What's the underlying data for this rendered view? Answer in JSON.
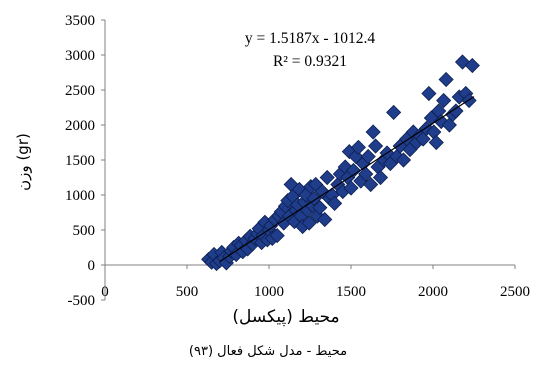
{
  "chart_data": {
    "type": "scatter",
    "title": "",
    "xlabel": "محیط (پیکسل)",
    "ylabel": "وزن (gr)",
    "xlim": [
      0,
      2500
    ],
    "ylim": [
      -500,
      3500
    ],
    "x_ticks": [
      "0",
      "500",
      "1000",
      "1500",
      "2000",
      "2500"
    ],
    "y_ticks": [
      "3500",
      "3000",
      "2500",
      "2000",
      "1500",
      "1000",
      "500",
      "0",
      "-500"
    ],
    "grid": false,
    "marker": "diamond",
    "marker_color": "#1f3d8a",
    "trendline": {
      "type": "linear",
      "slope": 1.5187,
      "intercept": -1012.4,
      "x_range": [
        700,
        2250
      ],
      "equation_label": "y = 1.5187x - 1012.4",
      "r2_label": "R² = 0.9321"
    },
    "points": [
      [
        632,
        80
      ],
      [
        650,
        40
      ],
      [
        665,
        150
      ],
      [
        680,
        20
      ],
      [
        700,
        60
      ],
      [
        712,
        180
      ],
      [
        725,
        100
      ],
      [
        740,
        30
      ],
      [
        760,
        120
      ],
      [
        770,
        200
      ],
      [
        785,
        250
      ],
      [
        800,
        150
      ],
      [
        815,
        310
      ],
      [
        830,
        280
      ],
      [
        840,
        190
      ],
      [
        860,
        350
      ],
      [
        870,
        230
      ],
      [
        885,
        410
      ],
      [
        900,
        300
      ],
      [
        915,
        380
      ],
      [
        930,
        450
      ],
      [
        940,
        520
      ],
      [
        955,
        320
      ],
      [
        965,
        420
      ],
      [
        975,
        610
      ],
      [
        990,
        360
      ],
      [
        1000,
        500
      ],
      [
        1010,
        560
      ],
      [
        1020,
        380
      ],
      [
        1035,
        650
      ],
      [
        1050,
        420
      ],
      [
        1060,
        700
      ],
      [
        1075,
        760
      ],
      [
        1090,
        600
      ],
      [
        1100,
        840
      ],
      [
        1115,
        920
      ],
      [
        1125,
        700
      ],
      [
        1135,
        1150
      ],
      [
        1145,
        980
      ],
      [
        1155,
        620
      ],
      [
        1165,
        780
      ],
      [
        1175,
        860
      ],
      [
        1185,
        1080
      ],
      [
        1195,
        700
      ],
      [
        1205,
        550
      ],
      [
        1215,
        900
      ],
      [
        1225,
        1000
      ],
      [
        1235,
        780
      ],
      [
        1245,
        600
      ],
      [
        1255,
        1120
      ],
      [
        1265,
        850
      ],
      [
        1275,
        950
      ],
      [
        1285,
        1150
      ],
      [
        1295,
        700
      ],
      [
        1310,
        820
      ],
      [
        1325,
        1050
      ],
      [
        1340,
        650
      ],
      [
        1355,
        1250
      ],
      [
        1370,
        950
      ],
      [
        1385,
        1000
      ],
      [
        1400,
        880
      ],
      [
        1420,
        1150
      ],
      [
        1435,
        1300
      ],
      [
        1450,
        1050
      ],
      [
        1465,
        1400
      ],
      [
        1480,
        1250
      ],
      [
        1490,
        1620
      ],
      [
        1500,
        1100
      ],
      [
        1515,
        1350
      ],
      [
        1530,
        1550
      ],
      [
        1545,
        1680
      ],
      [
        1560,
        1200
      ],
      [
        1575,
        1450
      ],
      [
        1590,
        1300
      ],
      [
        1605,
        1550
      ],
      [
        1620,
        1150
      ],
      [
        1635,
        1900
      ],
      [
        1650,
        1700
      ],
      [
        1665,
        1400
      ],
      [
        1680,
        1250
      ],
      [
        1700,
        1500
      ],
      [
        1720,
        1600
      ],
      [
        1740,
        1450
      ],
      [
        1760,
        2180
      ],
      [
        1780,
        1550
      ],
      [
        1800,
        1700
      ],
      [
        1820,
        1500
      ],
      [
        1840,
        1800
      ],
      [
        1860,
        1650
      ],
      [
        1880,
        1900
      ],
      [
        1900,
        1750
      ],
      [
        1920,
        1850
      ],
      [
        1940,
        1800
      ],
      [
        1960,
        1950
      ],
      [
        1975,
        2450
      ],
      [
        1990,
        2100
      ],
      [
        2005,
        1900
      ],
      [
        2020,
        1750
      ],
      [
        2035,
        2200
      ],
      [
        2050,
        2050
      ],
      [
        2065,
        2350
      ],
      [
        2080,
        2650
      ],
      [
        2100,
        2000
      ],
      [
        2120,
        2150
      ],
      [
        2140,
        2200
      ],
      [
        2160,
        2400
      ],
      [
        2180,
        2900
      ],
      [
        2200,
        2450
      ],
      [
        2220,
        2350
      ],
      [
        2240,
        2850
      ]
    ]
  },
  "caption": "محیط - مدل شکل فعال (۹۳)"
}
